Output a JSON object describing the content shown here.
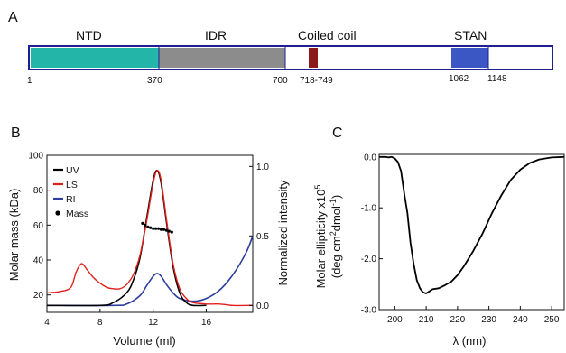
{
  "panels": {
    "a": "A",
    "b": "B",
    "c": "C"
  },
  "domain_map": {
    "colors": {
      "outline": "#1f1f8f",
      "ntd": "#22b5a8",
      "idr": "#8c8c8c",
      "coil": "#8b1a1a",
      "stan": "#3b57c4"
    },
    "domains": [
      {
        "name": "NTD",
        "start": 1,
        "end": 370
      },
      {
        "name": "IDR",
        "start": 370,
        "end": 700
      },
      {
        "name": "Coiled coil",
        "start": 718,
        "end": 749
      },
      {
        "name": "STAN",
        "start": 1062,
        "end": 1148
      }
    ],
    "positions": [
      "1",
      "370",
      "700",
      "718-749",
      "1062",
      "1148"
    ]
  },
  "chart_data": [
    {
      "type": "line",
      "xlabel": "Volume (ml)",
      "ylabel": "Molar mass (kDa)",
      "y2label": "Normalized intensity",
      "xlim": [
        4,
        19.5
      ],
      "ylim": [
        10,
        100
      ],
      "y2lim": [
        -0.05,
        1.08
      ],
      "xticks": [
        "4",
        "8",
        "12",
        "16"
      ],
      "yticks": [
        "20",
        "40",
        "60",
        "80",
        "100"
      ],
      "y2ticks": [
        "0.0",
        "0.5",
        "1.0"
      ],
      "legend_position": "top-left",
      "colors": {
        "UV": "#000000",
        "LS": "#e0201b",
        "RI": "#2e3e9e",
        "Mass": "#000000"
      },
      "series": [
        {
          "name": "UV",
          "axis": "right",
          "x": [
            4.0,
            8.0,
            9.0,
            10.0,
            10.5,
            11.0,
            11.5,
            12.0,
            12.3,
            12.6,
            13.0,
            13.5,
            14.0,
            14.5,
            15.0,
            16.0
          ],
          "y": [
            0.0,
            0.0,
            0.02,
            0.09,
            0.18,
            0.34,
            0.62,
            0.9,
            0.97,
            0.88,
            0.6,
            0.28,
            0.09,
            0.02,
            0.0,
            0.0
          ]
        },
        {
          "name": "LS",
          "axis": "right",
          "x": [
            4.0,
            5.0,
            5.8,
            6.2,
            6.6,
            7.0,
            7.5,
            8.0,
            8.5,
            9.0,
            9.5,
            10.0,
            10.5,
            11.0,
            11.5,
            12.0,
            12.3,
            12.6,
            13.0,
            13.5,
            14.0,
            14.5,
            15.0,
            16.0,
            17.0,
            18.0,
            19.5
          ],
          "y": [
            0.09,
            0.1,
            0.13,
            0.24,
            0.3,
            0.26,
            0.2,
            0.16,
            0.13,
            0.12,
            0.12,
            0.15,
            0.22,
            0.36,
            0.6,
            0.88,
            0.97,
            0.9,
            0.62,
            0.3,
            0.12,
            0.05,
            0.02,
            0.01,
            0.01,
            0.0,
            0.0
          ]
        },
        {
          "name": "RI",
          "axis": "right",
          "x": [
            4.0,
            9.0,
            10.0,
            11.0,
            11.5,
            12.0,
            12.3,
            12.6,
            13.0,
            13.5,
            14.0,
            15.0,
            16.0,
            17.0,
            18.0,
            19.0,
            19.5
          ],
          "y": [
            0.0,
            0.0,
            0.01,
            0.07,
            0.14,
            0.21,
            0.23,
            0.21,
            0.15,
            0.09,
            0.05,
            0.03,
            0.05,
            0.11,
            0.22,
            0.38,
            0.5
          ]
        },
        {
          "name": "Mass",
          "axis": "left",
          "x": [
            11.2,
            11.4,
            11.6,
            11.8,
            12.0,
            12.2,
            12.4,
            12.6,
            12.8,
            13.0,
            13.2,
            13.4
          ],
          "y": [
            61,
            60,
            59,
            58.5,
            58,
            58,
            58,
            57.5,
            57.5,
            57,
            56.5,
            56
          ]
        }
      ]
    },
    {
      "type": "line",
      "xlabel": "λ (nm)",
      "ylabel": "Molar ellipticity x10⁵ (deg cm²dmol⁻¹)",
      "xlim": [
        195,
        254
      ],
      "ylim": [
        -3.0,
        0.05
      ],
      "xticks": [
        "200",
        "210",
        "220",
        "230",
        "240",
        "250"
      ],
      "yticks": [
        "0.0",
        "-1.0",
        "-2.0",
        "-3.0"
      ],
      "series": [
        {
          "name": "",
          "x": [
            195,
            197,
            198,
            199,
            200,
            201,
            202,
            203,
            204,
            205,
            206,
            207,
            208,
            209,
            210,
            211,
            212,
            214,
            216,
            218,
            220,
            222,
            225,
            228,
            231,
            234,
            237,
            240,
            243,
            246,
            250,
            254
          ],
          "y": [
            0.0,
            0.0,
            -0.01,
            0.0,
            -0.03,
            -0.1,
            -0.28,
            -0.72,
            -1.1,
            -1.68,
            -2.1,
            -2.42,
            -2.58,
            -2.66,
            -2.68,
            -2.64,
            -2.6,
            -2.58,
            -2.52,
            -2.45,
            -2.32,
            -2.15,
            -1.85,
            -1.5,
            -1.1,
            -0.75,
            -0.45,
            -0.25,
            -0.12,
            -0.05,
            -0.01,
            0.0
          ]
        }
      ]
    }
  ]
}
